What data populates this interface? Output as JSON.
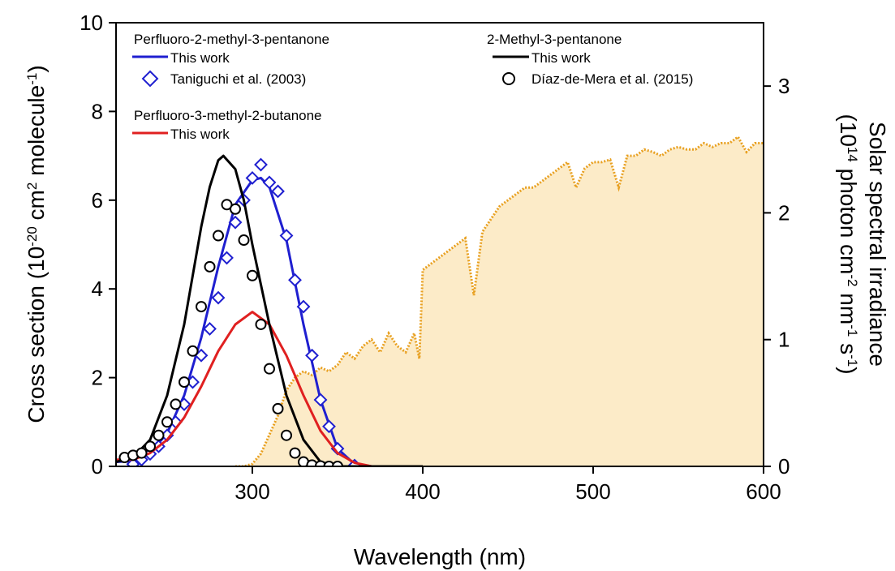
{
  "chart_data": {
    "type": "line",
    "xlabel": "Wavelength (nm)",
    "xlim": [
      220,
      600
    ],
    "x_ticks": [
      "300",
      "400",
      "500",
      "600"
    ],
    "ylabel_left": {
      "parts": [
        {
          "t": "Cross section (10"
        },
        {
          "t": "-20",
          "sup": true
        },
        {
          "t": " cm"
        },
        {
          "t": "2",
          "sup": true
        },
        {
          "t": " molecule"
        },
        {
          "t": "-1",
          "sup": true
        },
        {
          "t": ")"
        }
      ]
    },
    "ylim_left": [
      0,
      10
    ],
    "y_ticks_left": [
      "0",
      "2",
      "4",
      "6",
      "8",
      "10"
    ],
    "ylabel_right": {
      "line1": "Solar spectral irradiance",
      "line2": [
        {
          "t": "(10"
        },
        {
          "t": "14",
          "sup": true
        },
        {
          "t": " photon cm"
        },
        {
          "t": "-2",
          "sup": true
        },
        {
          "t": " nm"
        },
        {
          "t": "-1",
          "sup": true
        },
        {
          "t": " s"
        },
        {
          "t": "-1",
          "sup": true
        },
        {
          "t": ")"
        }
      ]
    },
    "ylim_right": [
      0,
      3.5
    ],
    "y_ticks_right": [
      "0",
      "1",
      "2",
      "3"
    ],
    "legend": {
      "group1_title": "Perfluoro-2-methyl-3-pentanone",
      "group1_line": "This work",
      "group1_marker": "Taniguchi et al. (2003)",
      "group2_title": "Perfluoro-3-methyl-2-butanone",
      "group2_line": "This work",
      "group3_title": "2-Methyl-3-pentanone",
      "group3_line": "This work",
      "group3_marker": "Díaz-de-Mera et al. (2015)"
    },
    "colors": {
      "blue": "#1f1fd0",
      "red": "#e02020",
      "black": "#000000",
      "solar_line": "#e8a020",
      "solar_fill": "#fcebc8"
    },
    "series": [
      {
        "id": "pf2m3p_this_work",
        "axis": "left",
        "style": "line",
        "color": "blue",
        "x": [
          220,
          230,
          240,
          250,
          260,
          270,
          280,
          290,
          300,
          305,
          310,
          320,
          330,
          340,
          350,
          360,
          370,
          400
        ],
        "y": [
          0.1,
          0.12,
          0.3,
          0.75,
          1.6,
          2.9,
          4.5,
          5.9,
          6.45,
          6.5,
          6.3,
          5.1,
          3.2,
          1.5,
          0.4,
          0.05,
          0.0,
          0.0
        ]
      },
      {
        "id": "pf2m3p_taniguchi",
        "axis": "left",
        "style": "marker",
        "marker": "diamond",
        "color": "blue",
        "x": [
          230,
          235,
          240,
          245,
          250,
          255,
          260,
          265,
          270,
          275,
          280,
          285,
          290,
          295,
          300,
          305,
          310,
          315,
          320,
          325,
          330,
          335,
          340,
          345,
          350,
          360
        ],
        "y": [
          0.05,
          0.15,
          0.28,
          0.45,
          0.7,
          1.0,
          1.4,
          1.9,
          2.5,
          3.1,
          3.8,
          4.7,
          5.5,
          6.0,
          6.5,
          6.8,
          6.4,
          6.2,
          5.2,
          4.2,
          3.6,
          2.5,
          1.5,
          0.9,
          0.4,
          0.02
        ]
      },
      {
        "id": "pf3m2b_this_work",
        "axis": "left",
        "style": "line",
        "color": "red",
        "x": [
          220,
          230,
          240,
          250,
          260,
          270,
          280,
          290,
          300,
          310,
          320,
          330,
          340,
          350,
          360,
          370
        ],
        "y": [
          0.15,
          0.15,
          0.3,
          0.6,
          1.1,
          1.8,
          2.6,
          3.2,
          3.48,
          3.2,
          2.5,
          1.6,
          0.8,
          0.3,
          0.08,
          0.0
        ]
      },
      {
        "id": "m3p_this_work",
        "axis": "left",
        "style": "line",
        "color": "black",
        "x": [
          220,
          230,
          240,
          250,
          260,
          265,
          270,
          275,
          280,
          283,
          290,
          295,
          300,
          310,
          320,
          330,
          340,
          350,
          360,
          400
        ],
        "y": [
          0.1,
          0.2,
          0.6,
          1.6,
          3.2,
          4.3,
          5.4,
          6.3,
          6.9,
          7.0,
          6.7,
          6.0,
          5.0,
          3.2,
          1.6,
          0.6,
          0.1,
          0.0,
          0.0,
          0.0
        ]
      },
      {
        "id": "m3p_diaz",
        "axis": "left",
        "style": "marker",
        "marker": "circle",
        "color": "black",
        "x": [
          225,
          230,
          235,
          240,
          245,
          250,
          255,
          260,
          265,
          270,
          275,
          280,
          285,
          290,
          295,
          300,
          305,
          310,
          315,
          320,
          325,
          330,
          335,
          340,
          345,
          350
        ],
        "y": [
          0.2,
          0.25,
          0.3,
          0.45,
          0.7,
          1.0,
          1.4,
          1.9,
          2.6,
          3.6,
          4.5,
          5.2,
          5.9,
          5.8,
          5.1,
          4.3,
          3.2,
          2.2,
          1.3,
          0.7,
          0.3,
          0.1,
          0.03,
          0.01,
          0.0,
          0.0
        ]
      },
      {
        "id": "solar_irradiance",
        "axis": "right",
        "style": "dotted-area",
        "color": "solar_line",
        "fill": "solar_fill",
        "x": [
          290,
          295,
          300,
          305,
          310,
          315,
          320,
          325,
          330,
          335,
          340,
          345,
          350,
          355,
          360,
          365,
          370,
          375,
          380,
          385,
          390,
          395,
          398,
          400,
          405,
          410,
          415,
          420,
          425,
          430,
          435,
          440,
          445,
          450,
          455,
          460,
          465,
          470,
          475,
          480,
          485,
          490,
          495,
          500,
          505,
          510,
          515,
          520,
          525,
          530,
          535,
          540,
          545,
          550,
          555,
          560,
          565,
          570,
          575,
          580,
          585,
          590,
          595,
          600
        ],
        "y": [
          0.0,
          0.0,
          0.02,
          0.1,
          0.25,
          0.4,
          0.6,
          0.7,
          0.75,
          0.72,
          0.78,
          0.75,
          0.8,
          0.9,
          0.85,
          0.95,
          1.0,
          0.9,
          1.05,
          0.95,
          0.9,
          1.05,
          0.85,
          1.55,
          1.6,
          1.65,
          1.7,
          1.75,
          1.8,
          1.35,
          1.85,
          1.95,
          2.05,
          2.1,
          2.15,
          2.2,
          2.2,
          2.25,
          2.3,
          2.35,
          2.4,
          2.2,
          2.35,
          2.4,
          2.4,
          2.42,
          2.2,
          2.45,
          2.45,
          2.5,
          2.48,
          2.45,
          2.5,
          2.52,
          2.5,
          2.5,
          2.55,
          2.52,
          2.55,
          2.55,
          2.6,
          2.48,
          2.55,
          2.55
        ]
      }
    ]
  }
}
